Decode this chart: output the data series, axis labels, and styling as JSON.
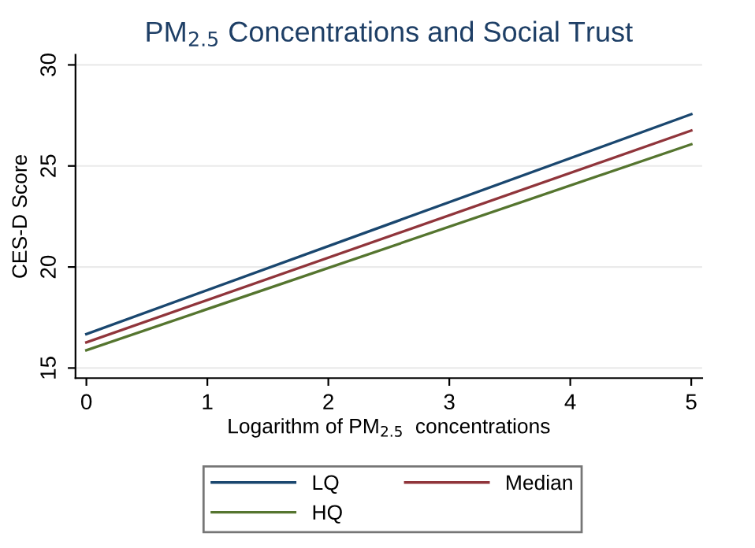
{
  "chart_data": {
    "type": "line",
    "title": "PM$_{2.5}$ Concentrations and Social Trust",
    "xlabel": "Logarithm of PM$_{2.5}$  concentrations",
    "ylabel": "CES-D Score",
    "x": [
      0,
      5
    ],
    "series": [
      {
        "name": "LQ",
        "color": "#1a476f",
        "values": [
          16.68,
          27.56
        ]
      },
      {
        "name": "Median",
        "color": "#90353b",
        "values": [
          16.27,
          26.75
        ]
      },
      {
        "name": "HQ",
        "color": "#55752f",
        "values": [
          15.88,
          26.07
        ]
      }
    ],
    "xlim": [
      -0.09,
      5.09
    ],
    "ylim": [
      14.5,
      30.5
    ],
    "xticks": [
      0,
      1,
      2,
      3,
      4,
      5
    ],
    "yticks": [
      15,
      20,
      25,
      30
    ],
    "grid": "y",
    "legend": "bottom",
    "line_style": "solid",
    "marker": "none"
  }
}
